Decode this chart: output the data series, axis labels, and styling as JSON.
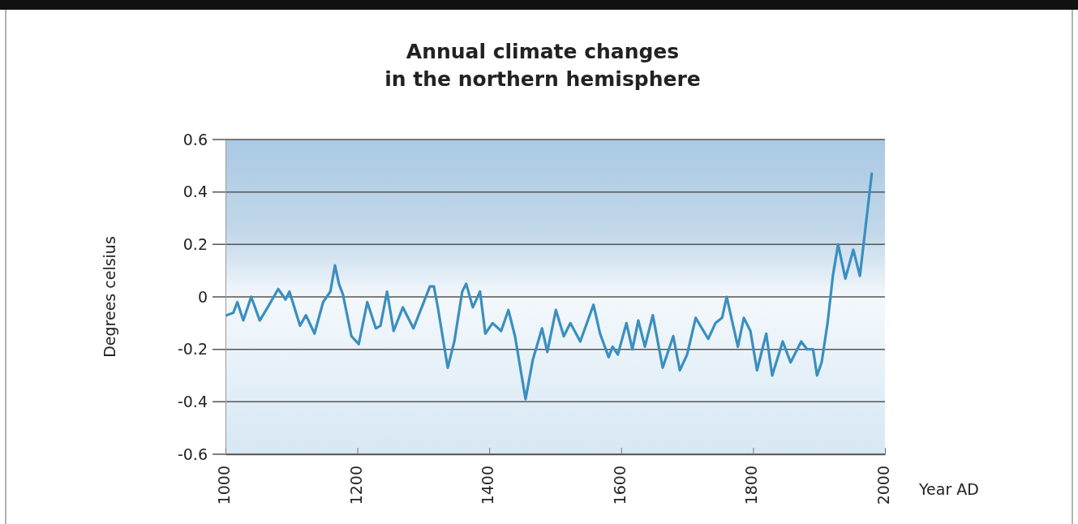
{
  "chart_data": {
    "type": "line",
    "title": "Annual climate changes\nin the northern hemisphere",
    "xlabel": "Year AD",
    "ylabel": "Degrees celsius",
    "xlim": [
      1000,
      2000
    ],
    "xticks": [
      1000,
      1200,
      1400,
      1600,
      1800,
      2000
    ],
    "ylim": [
      -0.6,
      0.6
    ],
    "yticks": [
      {
        "value": 0.6,
        "label": "0.6"
      },
      {
        "value": 0.4,
        "label": "0.4"
      },
      {
        "value": 0.2,
        "label": "0.2"
      },
      {
        "value": 0,
        "label": "0"
      },
      {
        "value": -0.2,
        "label": "-0.2"
      },
      {
        "value": -0.4,
        "label": "-0.4"
      },
      {
        "value": -0.6,
        "label": "-0.6"
      }
    ],
    "grid": "y",
    "marker": "none",
    "line_style": "solid",
    "x": [
      1002,
      1012,
      1018,
      1027,
      1039,
      1052,
      1064,
      1080,
      1091,
      1097,
      1113,
      1122,
      1135,
      1148,
      1159,
      1166,
      1172,
      1178,
      1191,
      1202,
      1215,
      1228,
      1235,
      1245,
      1255,
      1269,
      1285,
      1310,
      1316,
      1322,
      1337,
      1347,
      1359,
      1365,
      1375,
      1386,
      1394,
      1405,
      1418,
      1429,
      1439,
      1455,
      1466,
      1480,
      1488,
      1501,
      1513,
      1523,
      1538,
      1558,
      1568,
      1581,
      1587,
      1595,
      1608,
      1617,
      1626,
      1636,
      1648,
      1663,
      1679,
      1689,
      1700,
      1713,
      1732,
      1743,
      1753,
      1760,
      1777,
      1786,
      1796,
      1806,
      1820,
      1829,
      1845,
      1857,
      1873,
      1882,
      1891,
      1897,
      1904,
      1913,
      1921,
      1929,
      1940,
      1952,
      1962,
      1980
    ],
    "series": [
      {
        "color": "#3a8fbf",
        "values": [
          -0.07,
          -0.06,
          -0.02,
          -0.09,
          0.0,
          -0.09,
          -0.04,
          0.03,
          -0.01,
          0.02,
          -0.11,
          -0.07,
          -0.14,
          -0.02,
          0.02,
          0.12,
          0.05,
          0.01,
          -0.15,
          -0.18,
          -0.02,
          -0.12,
          -0.11,
          0.02,
          -0.13,
          -0.04,
          -0.12,
          0.04,
          0.04,
          -0.04,
          -0.27,
          -0.17,
          0.02,
          0.05,
          -0.04,
          0.02,
          -0.14,
          -0.1,
          -0.13,
          -0.05,
          -0.15,
          -0.39,
          -0.24,
          -0.12,
          -0.21,
          -0.05,
          -0.15,
          -0.1,
          -0.17,
          -0.03,
          -0.14,
          -0.23,
          -0.19,
          -0.22,
          -0.1,
          -0.2,
          -0.09,
          -0.19,
          -0.07,
          -0.27,
          -0.15,
          -0.28,
          -0.22,
          -0.08,
          -0.16,
          -0.1,
          -0.08,
          0.0,
          -0.19,
          -0.08,
          -0.13,
          -0.28,
          -0.14,
          -0.3,
          -0.17,
          -0.25,
          -0.17,
          -0.2,
          -0.2,
          -0.3,
          -0.25,
          -0.1,
          0.08,
          0.2,
          0.07,
          0.18,
          0.08,
          0.47
        ]
      }
    ]
  }
}
